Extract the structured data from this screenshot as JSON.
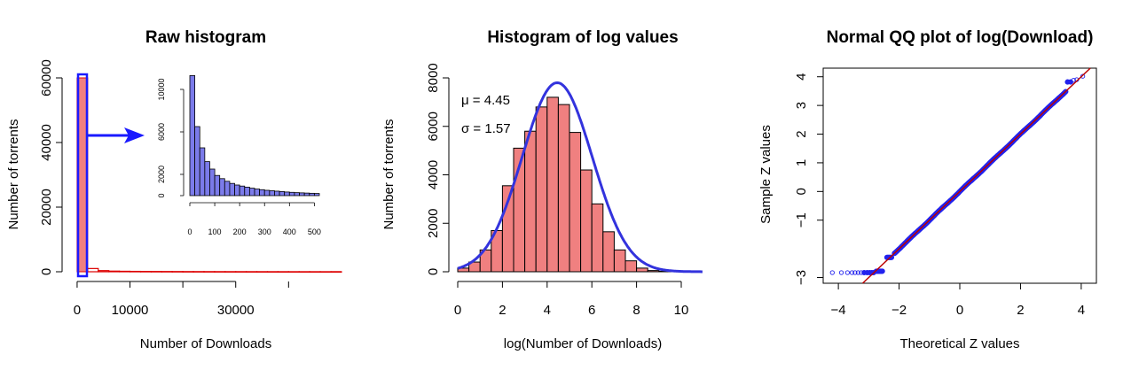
{
  "colors": {
    "bar_red": "#f08080",
    "line_red": "#dd0000",
    "bar_blue": "#7b7bea",
    "curve_blue": "#3333dd",
    "qq_point": "#2222ee",
    "qq_line": "#bb0000"
  },
  "chart_data": [
    {
      "type": "bar",
      "title": "Raw histogram",
      "xlabel": "Number of Downloads",
      "ylabel": "Number of torrents",
      "xlim": [
        0,
        50000
      ],
      "ylim": [
        0,
        60000
      ],
      "xticks": [
        0,
        10000,
        30000
      ],
      "xtick_labels": [
        "0",
        "10000",
        "30000"
      ],
      "yticks": [
        0,
        20000,
        40000,
        60000
      ],
      "ytick_labels": [
        "0",
        "20000",
        "40000",
        "60000"
      ],
      "bin_width": 2000,
      "values": [
        60000,
        1000,
        350,
        200,
        150,
        120,
        100,
        90,
        80,
        70,
        60,
        55,
        50,
        45,
        40,
        38,
        35,
        33,
        30,
        28,
        26,
        24,
        22,
        20,
        18
      ],
      "inset": {
        "type": "bar",
        "xticks": [
          0,
          100,
          200,
          300,
          400,
          500
        ],
        "xtick_labels": [
          "0",
          "100",
          "200",
          "300",
          "400",
          "500"
        ],
        "yticks": [
          0,
          2000,
          6000,
          10000
        ],
        "ytick_labels": [
          "0",
          "2000",
          "6000",
          "10000"
        ],
        "xlim": [
          0,
          520
        ],
        "ylim": [
          0,
          11500
        ],
        "bin_width": 20,
        "values": [
          11300,
          6500,
          4500,
          3200,
          2500,
          1900,
          1600,
          1350,
          1150,
          1000,
          900,
          800,
          700,
          620,
          560,
          500,
          460,
          420,
          380,
          340,
          310,
          280,
          260,
          240,
          220,
          200
        ]
      }
    },
    {
      "type": "bar",
      "title": "Histogram of log values",
      "xlabel": "log(Number of Downloads)",
      "ylabel": "Number of torrents",
      "xlim": [
        0,
        11
      ],
      "ylim": [
        0,
        8000
      ],
      "xticks": [
        0,
        2,
        4,
        6,
        8,
        10
      ],
      "xtick_labels": [
        "0",
        "2",
        "4",
        "6",
        "8",
        "10"
      ],
      "yticks": [
        0,
        2000,
        4000,
        6000,
        8000
      ],
      "ytick_labels": [
        "0",
        "2000",
        "4000",
        "6000",
        "8000"
      ],
      "bin_width": 0.5,
      "bin_start": 0,
      "values": [
        150,
        400,
        900,
        1700,
        3550,
        5100,
        5800,
        6800,
        7200,
        6900,
        5750,
        4200,
        2800,
        1650,
        900,
        450,
        150,
        50,
        20,
        10,
        5
      ],
      "annotations": [
        "μ = 4.45",
        "σ = 1.57"
      ],
      "fit": {
        "mean": 4.45,
        "sd": 1.57,
        "peak": 7800
      }
    },
    {
      "type": "scatter",
      "title": "Normal QQ plot of log(Download)",
      "xlabel": "Theoretical Z values",
      "ylabel": "Sample Z values",
      "xlim": [
        -4.5,
        4.5
      ],
      "ylim": [
        -3.2,
        4.3
      ],
      "xticks": [
        -4,
        -2,
        0,
        2,
        4
      ],
      "xtick_labels": [
        "−4",
        "−2",
        "0",
        "2",
        "4"
      ],
      "yticks": [
        -3,
        -1,
        0,
        1,
        2,
        3,
        4
      ],
      "ytick_labels": [
        "−3",
        "−1",
        "0",
        "1",
        "2",
        "3",
        "4"
      ],
      "reference_line": {
        "slope": 1,
        "intercept": 0
      },
      "points": {
        "floor_value": -2.83,
        "floor_x": [
          -4.2,
          -3.9,
          -3.7,
          -3.55,
          -3.45,
          -3.35,
          -3.25,
          -3.15,
          -3.05,
          -2.97,
          -2.9,
          -2.84
        ],
        "steps": [
          [
            -2.75,
            -2.78,
            -2.55,
            -2.45
          ],
          [
            -2.4,
            -2.3,
            -2.25,
            -2.15
          ]
        ],
        "tail_x": [
          3.55,
          3.65,
          3.75,
          3.85,
          4.05
        ],
        "tail_y": [
          3.82,
          3.82,
          3.88,
          3.9,
          4.02
        ]
      }
    }
  ]
}
